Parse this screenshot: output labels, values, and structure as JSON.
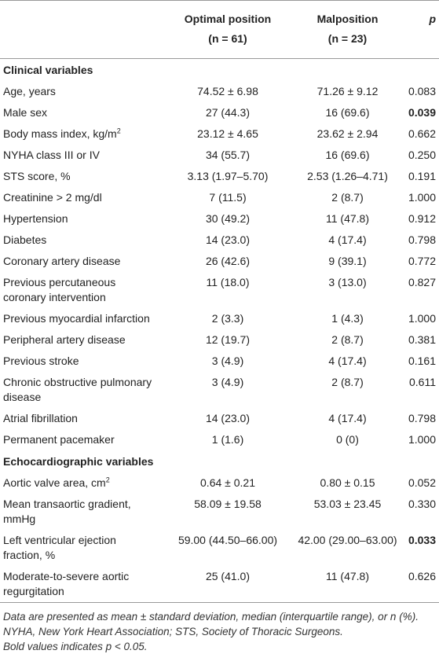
{
  "table": {
    "header": {
      "optimal": {
        "title": "Optimal position",
        "n": "(n = 61)"
      },
      "malposition": {
        "title": "Malposition",
        "n": "(n = 23)"
      },
      "p": "p"
    },
    "sections": [
      {
        "title": "Clinical variables",
        "rows": [
          {
            "label": "Age, years",
            "optimal": "74.52 ± 6.98",
            "malposition": "71.26 ± 9.12",
            "p": "0.083"
          },
          {
            "label": "Male sex",
            "optimal": "27 (44.3)",
            "malposition": "16 (69.6)",
            "p": "0.039",
            "bold": true
          },
          {
            "label": "Body mass index, kg/m",
            "sup": "2",
            "optimal": "23.12 ± 4.65",
            "malposition": "23.62 ± 2.94",
            "p": "0.662"
          },
          {
            "label": "NYHA class III or IV",
            "optimal": "34 (55.7)",
            "malposition": "16 (69.6)",
            "p": "0.250"
          },
          {
            "label": "STS score, %",
            "optimal": "3.13 (1.97–5.70)",
            "malposition": "2.53 (1.26–4.71)",
            "p": "0.191"
          },
          {
            "label": "Creatinine > 2 mg/dl",
            "optimal": "7 (11.5)",
            "malposition": "2 (8.7)",
            "p": "1.000"
          },
          {
            "label": "Hypertension",
            "optimal": "30 (49.2)",
            "malposition": "11 (47.8)",
            "p": "0.912"
          },
          {
            "label": "Diabetes",
            "optimal": "14 (23.0)",
            "malposition": "4 (17.4)",
            "p": "0.798"
          },
          {
            "label": "Coronary artery disease",
            "optimal": "26 (42.6)",
            "malposition": "9 (39.1)",
            "p": "0.772"
          },
          {
            "label": "Previous percutaneous coronary intervention",
            "optimal": "11 (18.0)",
            "malposition": "3 (13.0)",
            "p": "0.827"
          },
          {
            "label": "Previous myocardial infarction",
            "optimal": "2 (3.3)",
            "malposition": "1 (4.3)",
            "p": "1.000"
          },
          {
            "label": "Peripheral artery disease",
            "optimal": "12 (19.7)",
            "malposition": "2 (8.7)",
            "p": "0.381"
          },
          {
            "label": "Previous stroke",
            "optimal": "3 (4.9)",
            "malposition": "4 (17.4)",
            "p": "0.161"
          },
          {
            "label": "Chronic obstructive pulmonary disease",
            "optimal": "3 (4.9)",
            "malposition": "2 (8.7)",
            "p": "0.611"
          },
          {
            "label": "Atrial fibrillation",
            "optimal": "14 (23.0)",
            "malposition": "4 (17.4)",
            "p": "0.798"
          },
          {
            "label": "Permanent pacemaker",
            "optimal": "1 (1.6)",
            "malposition": "0 (0)",
            "p": "1.000"
          }
        ]
      },
      {
        "title": "Echocardiographic variables",
        "rows": [
          {
            "label": "Aortic valve area, cm",
            "sup": "2",
            "optimal": "0.64 ± 0.21",
            "malposition": "0.80 ± 0.15",
            "p": "0.052"
          },
          {
            "label": "Mean transaortic gradient, mmHg",
            "optimal": "58.09 ± 19.58",
            "malposition": "53.03 ± 23.45",
            "p": "0.330"
          },
          {
            "label": "Left ventricular ejection fraction, %",
            "optimal": "59.00 (44.50–66.00)",
            "malposition": "42.00 (29.00–63.00)",
            "p": "0.033",
            "bold": true
          },
          {
            "label": "Moderate-to-severe aortic regurgitation",
            "optimal": "25 (41.0)",
            "malposition": "11 (47.8)",
            "p": "0.626"
          }
        ]
      }
    ]
  },
  "footnotes": [
    "Data are presented as mean ± standard deviation, median (interquartile range), or n (%).",
    "NYHA, New York Heart Association; STS, Society of Thoracic Surgeons.",
    "Bold values indicates p < 0.05."
  ]
}
